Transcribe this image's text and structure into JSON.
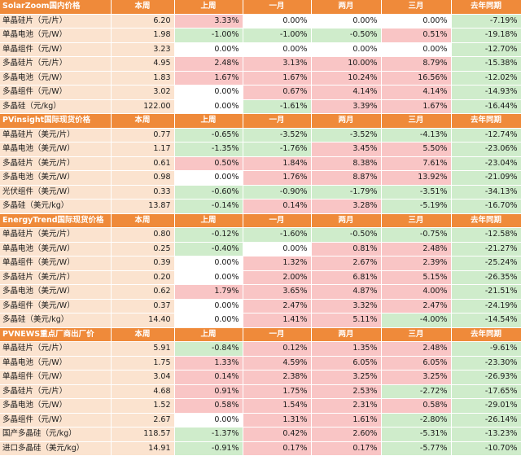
{
  "columns": [
    "本周",
    "上周",
    "一月",
    "两月",
    "三月",
    "去年同期"
  ],
  "colors": {
    "header": "#ef8a3a",
    "label_bg": "#fbe3cf",
    "up": "#f9c5c5",
    "down": "#cfeccb",
    "flat": "#ffffff"
  },
  "sections": [
    {
      "title": "SolarZoom国内价格",
      "rows": [
        {
          "name": "单晶硅片（元/片）",
          "cur": "6.20",
          "vals": [
            "3.33%",
            "0.00%",
            "0.00%",
            "0.00%",
            "-7.19%"
          ]
        },
        {
          "name": "单晶电池（元/W）",
          "cur": "1.98",
          "vals": [
            "-1.00%",
            "-1.00%",
            "-0.50%",
            "0.51%",
            "-19.18%"
          ]
        },
        {
          "name": "单晶组件（元/W）",
          "cur": "3.23",
          "vals": [
            "0.00%",
            "0.00%",
            "0.00%",
            "0.00%",
            "-12.70%"
          ]
        },
        {
          "name": "多晶硅片（元/片）",
          "cur": "4.95",
          "vals": [
            "2.48%",
            "3.13%",
            "10.00%",
            "8.79%",
            "-15.38%"
          ]
        },
        {
          "name": "多晶电池（元/W）",
          "cur": "1.83",
          "vals": [
            "1.67%",
            "1.67%",
            "10.24%",
            "16.56%",
            "-12.02%"
          ]
        },
        {
          "name": "多晶组件（元/W）",
          "cur": "3.02",
          "vals": [
            "0.00%",
            "0.67%",
            "4.14%",
            "4.14%",
            "-14.93%"
          ]
        },
        {
          "name": "多晶硅（元/kg）",
          "cur": "122.00",
          "vals": [
            "0.00%",
            "-1.61%",
            "3.39%",
            "1.67%",
            "-16.44%"
          ]
        }
      ]
    },
    {
      "title": "PVinsight国际现货价格",
      "rows": [
        {
          "name": "单晶硅片（美元/片）",
          "cur": "0.77",
          "vals": [
            "-0.65%",
            "-3.52%",
            "-3.52%",
            "-4.13%",
            "-12.74%"
          ]
        },
        {
          "name": "单晶电池（美元/W）",
          "cur": "1.17",
          "vals": [
            "-1.35%",
            "-1.76%",
            "3.45%",
            "5.50%",
            "-23.06%"
          ]
        },
        {
          "name": "多晶硅片（美元/片）",
          "cur": "0.61",
          "vals": [
            "0.50%",
            "1.84%",
            "8.38%",
            "7.61%",
            "-23.04%"
          ]
        },
        {
          "name": "多晶电池（美元/W）",
          "cur": "0.98",
          "vals": [
            "0.00%",
            "1.76%",
            "8.87%",
            "13.92%",
            "-21.09%"
          ]
        },
        {
          "name": "光伏组件（美元/W）",
          "cur": "0.33",
          "vals": [
            "-0.60%",
            "-0.90%",
            "-1.79%",
            "-3.51%",
            "-34.13%"
          ]
        },
        {
          "name": "多晶硅（美元/kg）",
          "cur": "13.87",
          "vals": [
            "-0.14%",
            "0.14%",
            "3.28%",
            "-5.19%",
            "-16.70%"
          ]
        }
      ]
    },
    {
      "title": "EnergyTrend国际现货价格",
      "rows": [
        {
          "name": "单晶硅片（美元/片）",
          "cur": "0.80",
          "vals": [
            "-0.12%",
            "-1.60%",
            "-0.50%",
            "-0.75%",
            "-12.58%"
          ]
        },
        {
          "name": "单晶电池（美元/W）",
          "cur": "0.25",
          "vals": [
            "-0.40%",
            "0.00%",
            "0.81%",
            "2.48%",
            "-21.27%"
          ]
        },
        {
          "name": "单晶组件（美元/W）",
          "cur": "0.39",
          "vals": [
            "0.00%",
            "1.32%",
            "2.67%",
            "2.39%",
            "-25.24%"
          ]
        },
        {
          "name": "多晶硅片（美元/片）",
          "cur": "0.20",
          "vals": [
            "0.00%",
            "2.00%",
            "6.81%",
            "5.15%",
            "-26.35%"
          ]
        },
        {
          "name": "多晶电池（美元/W）",
          "cur": "0.62",
          "vals": [
            "1.79%",
            "3.65%",
            "4.87%",
            "4.00%",
            "-21.51%"
          ]
        },
        {
          "name": "多晶组件（美元/W）",
          "cur": "0.37",
          "vals": [
            "0.00%",
            "2.47%",
            "3.32%",
            "2.47%",
            "-24.19%"
          ]
        },
        {
          "name": "多晶硅（美元/kg）",
          "cur": "14.40",
          "vals": [
            "0.00%",
            "1.41%",
            "5.11%",
            "-4.00%",
            "-14.54%"
          ]
        }
      ]
    },
    {
      "title": "PVNEWS重点厂商出厂价",
      "rows": [
        {
          "name": "单晶硅片（元/片）",
          "cur": "5.91",
          "vals": [
            "-0.84%",
            "0.12%",
            "1.35%",
            "2.48%",
            "-9.61%"
          ]
        },
        {
          "name": "单晶电池（元/W）",
          "cur": "1.75",
          "vals": [
            "1.33%",
            "4.59%",
            "6.05%",
            "6.05%",
            "-23.30%"
          ]
        },
        {
          "name": "单晶组件（元/W）",
          "cur": "3.04",
          "vals": [
            "0.14%",
            "2.38%",
            "3.25%",
            "3.25%",
            "-26.93%"
          ]
        },
        {
          "name": "多晶硅片（元/片）",
          "cur": "4.68",
          "vals": [
            "0.91%",
            "1.75%",
            "2.53%",
            "-2.72%",
            "-17.65%"
          ]
        },
        {
          "name": "多晶电池（元/W）",
          "cur": "1.52",
          "vals": [
            "0.58%",
            "1.54%",
            "2.31%",
            "0.58%",
            "-29.01%"
          ]
        },
        {
          "name": "多晶组件（元/W）",
          "cur": "2.67",
          "vals": [
            "0.00%",
            "1.31%",
            "1.61%",
            "-2.80%",
            "-26.14%"
          ]
        },
        {
          "name": "国产多晶硅（元/kg）",
          "cur": "118.57",
          "vals": [
            "-1.37%",
            "0.42%",
            "2.60%",
            "-5.31%",
            "-13.23%"
          ]
        },
        {
          "name": "进口多晶硅（美元/kg）",
          "cur": "14.91",
          "vals": [
            "-0.91%",
            "0.17%",
            "0.17%",
            "-5.77%",
            "-10.70%"
          ]
        }
      ]
    }
  ]
}
